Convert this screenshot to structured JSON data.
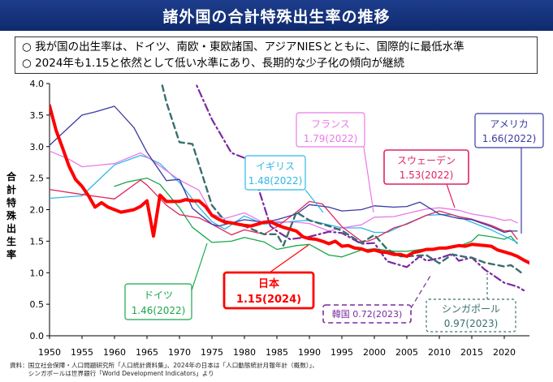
{
  "header": {
    "title": "諸外国の合計特殊出生率の推移"
  },
  "notes": [
    "○ 我が国の出生率は、ドイツ、南欧・東欧諸国、アジアNIESとともに、国際的に最低水準",
    "○ 2024年も1.15と依然として低い水準にあり、長期的な少子化の傾向が継続"
  ],
  "source": [
    "資料：国立社会保障・人口問題研究所「人口統計資料集」、2024年の日本は「人口動態統計月報年計（概数）」、",
    "　　　シンガポールは世界銀行「World Development Indicators」より"
  ],
  "colors": {
    "japan": "#ff0000",
    "germany": "#19a84a",
    "uk": "#2eb8e6",
    "france": "#e87ae8",
    "sweden": "#e0245e",
    "usa": "#3a3aa0",
    "korea": "#7a2aa0",
    "singapore": "#3a6e6e"
  },
  "chart_data": {
    "type": "line",
    "title": "",
    "xlabel": "",
    "ylabel": "合計特殊出生率",
    "xlim": [
      1950,
      2024
    ],
    "ylim": [
      0,
      4
    ],
    "x_ticks": [
      "1950",
      "1955",
      "1960",
      "1965",
      "1970",
      "1975",
      "1980",
      "1985",
      "1990",
      "1995",
      "2000",
      "2005",
      "2010",
      "2015",
      "2020"
    ],
    "y_ticks": [
      "0.0",
      "0.5",
      "1.0",
      "1.5",
      "2.0",
      "2.5",
      "3.0",
      "3.5",
      "4.0"
    ],
    "grid": false,
    "series": [
      {
        "name": "日本",
        "color_key": "japan",
        "style": "bold",
        "label": "日本",
        "value_label": "1.15(2024)",
        "points": [
          [
            1950,
            3.65
          ],
          [
            1951,
            3.26
          ],
          [
            1952,
            2.98
          ],
          [
            1953,
            2.69
          ],
          [
            1954,
            2.48
          ],
          [
            1955,
            2.37
          ],
          [
            1956,
            2.22
          ],
          [
            1957,
            2.04
          ],
          [
            1958,
            2.11
          ],
          [
            1959,
            2.04
          ],
          [
            1960,
            2.0
          ],
          [
            1961,
            1.96
          ],
          [
            1962,
            1.98
          ],
          [
            1963,
            2.0
          ],
          [
            1964,
            2.05
          ],
          [
            1965,
            2.14
          ],
          [
            1966,
            1.58
          ],
          [
            1967,
            2.23
          ],
          [
            1968,
            2.13
          ],
          [
            1969,
            2.13
          ],
          [
            1970,
            2.13
          ],
          [
            1971,
            2.16
          ],
          [
            1972,
            2.14
          ],
          [
            1973,
            2.14
          ],
          [
            1974,
            2.05
          ],
          [
            1975,
            1.91
          ],
          [
            1976,
            1.85
          ],
          [
            1977,
            1.8
          ],
          [
            1978,
            1.79
          ],
          [
            1979,
            1.77
          ],
          [
            1980,
            1.75
          ],
          [
            1981,
            1.74
          ],
          [
            1982,
            1.77
          ],
          [
            1983,
            1.8
          ],
          [
            1984,
            1.81
          ],
          [
            1985,
            1.76
          ],
          [
            1986,
            1.72
          ],
          [
            1987,
            1.69
          ],
          [
            1988,
            1.66
          ],
          [
            1989,
            1.57
          ],
          [
            1990,
            1.54
          ],
          [
            1991,
            1.53
          ],
          [
            1992,
            1.5
          ],
          [
            1993,
            1.46
          ],
          [
            1994,
            1.5
          ],
          [
            1995,
            1.42
          ],
          [
            1996,
            1.43
          ],
          [
            1997,
            1.39
          ],
          [
            1998,
            1.38
          ],
          [
            1999,
            1.34
          ],
          [
            2000,
            1.36
          ],
          [
            2001,
            1.33
          ],
          [
            2002,
            1.32
          ],
          [
            2003,
            1.29
          ],
          [
            2004,
            1.29
          ],
          [
            2005,
            1.26
          ],
          [
            2006,
            1.32
          ],
          [
            2007,
            1.34
          ],
          [
            2008,
            1.37
          ],
          [
            2009,
            1.37
          ],
          [
            2010,
            1.39
          ],
          [
            2011,
            1.39
          ],
          [
            2012,
            1.41
          ],
          [
            2013,
            1.43
          ],
          [
            2014,
            1.42
          ],
          [
            2015,
            1.45
          ],
          [
            2016,
            1.44
          ],
          [
            2017,
            1.43
          ],
          [
            2018,
            1.42
          ],
          [
            2019,
            1.36
          ],
          [
            2020,
            1.33
          ],
          [
            2021,
            1.3
          ],
          [
            2022,
            1.26
          ],
          [
            2023,
            1.2
          ],
          [
            2024,
            1.15
          ]
        ]
      },
      {
        "name": "ドイツ",
        "color_key": "germany",
        "style": "solid",
        "label": "ドイツ",
        "value_label": "1.46(2022)",
        "points": [
          [
            1960,
            2.37
          ],
          [
            1962,
            2.44
          ],
          [
            1965,
            2.5
          ],
          [
            1967,
            2.4
          ],
          [
            1970,
            2.03
          ],
          [
            1972,
            1.72
          ],
          [
            1975,
            1.48
          ],
          [
            1978,
            1.5
          ],
          [
            1980,
            1.56
          ],
          [
            1983,
            1.49
          ],
          [
            1985,
            1.37
          ],
          [
            1988,
            1.43
          ],
          [
            1990,
            1.45
          ],
          [
            1993,
            1.28
          ],
          [
            1995,
            1.25
          ],
          [
            1998,
            1.36
          ],
          [
            2000,
            1.38
          ],
          [
            2003,
            1.34
          ],
          [
            2005,
            1.34
          ],
          [
            2008,
            1.38
          ],
          [
            2010,
            1.39
          ],
          [
            2013,
            1.42
          ],
          [
            2015,
            1.5
          ],
          [
            2016,
            1.6
          ],
          [
            2018,
            1.57
          ],
          [
            2020,
            1.53
          ],
          [
            2021,
            1.58
          ],
          [
            2022,
            1.46
          ]
        ]
      },
      {
        "name": "イギリス",
        "color_key": "uk",
        "style": "solid",
        "label": "イギリス",
        "value_label": "1.48(2022)",
        "points": [
          [
            1950,
            2.18
          ],
          [
            1955,
            2.22
          ],
          [
            1960,
            2.71
          ],
          [
            1964,
            2.86
          ],
          [
            1965,
            2.83
          ],
          [
            1967,
            2.73
          ],
          [
            1970,
            2.43
          ],
          [
            1973,
            2.04
          ],
          [
            1975,
            1.81
          ],
          [
            1977,
            1.69
          ],
          [
            1980,
            1.9
          ],
          [
            1983,
            1.77
          ],
          [
            1985,
            1.79
          ],
          [
            1988,
            1.82
          ],
          [
            1990,
            1.83
          ],
          [
            1993,
            1.76
          ],
          [
            1995,
            1.71
          ],
          [
            1998,
            1.71
          ],
          [
            2000,
            1.64
          ],
          [
            2002,
            1.64
          ],
          [
            2005,
            1.78
          ],
          [
            2008,
            1.91
          ],
          [
            2010,
            1.92
          ],
          [
            2012,
            1.92
          ],
          [
            2015,
            1.8
          ],
          [
            2018,
            1.68
          ],
          [
            2020,
            1.58
          ],
          [
            2021,
            1.53
          ],
          [
            2022,
            1.48
          ]
        ]
      },
      {
        "name": "フランス",
        "color_key": "france",
        "style": "solid",
        "label": "フランス",
        "value_label": "1.79(2022)",
        "points": [
          [
            1950,
            2.93
          ],
          [
            1953,
            2.8
          ],
          [
            1955,
            2.68
          ],
          [
            1960,
            2.73
          ],
          [
            1964,
            2.9
          ],
          [
            1965,
            2.84
          ],
          [
            1970,
            2.47
          ],
          [
            1973,
            2.31
          ],
          [
            1975,
            1.93
          ],
          [
            1977,
            1.86
          ],
          [
            1980,
            1.95
          ],
          [
            1983,
            1.79
          ],
          [
            1985,
            1.81
          ],
          [
            1988,
            1.8
          ],
          [
            1990,
            1.78
          ],
          [
            1993,
            1.66
          ],
          [
            1995,
            1.71
          ],
          [
            1998,
            1.76
          ],
          [
            2000,
            1.88
          ],
          [
            2003,
            1.89
          ],
          [
            2005,
            1.94
          ],
          [
            2008,
            2.01
          ],
          [
            2010,
            2.03
          ],
          [
            2013,
            1.99
          ],
          [
            2015,
            1.93
          ],
          [
            2018,
            1.88
          ],
          [
            2020,
            1.83
          ],
          [
            2021,
            1.84
          ],
          [
            2022,
            1.79
          ]
        ]
      },
      {
        "name": "スウェーデン",
        "color_key": "sweden",
        "style": "solid",
        "label": "スウェーデン",
        "value_label": "1.53(2022)",
        "points": [
          [
            1950,
            2.32
          ],
          [
            1955,
            2.24
          ],
          [
            1960,
            2.17
          ],
          [
            1964,
            2.47
          ],
          [
            1965,
            2.39
          ],
          [
            1968,
            2.07
          ],
          [
            1970,
            1.92
          ],
          [
            1973,
            1.87
          ],
          [
            1975,
            1.77
          ],
          [
            1978,
            1.6
          ],
          [
            1980,
            1.68
          ],
          [
            1983,
            1.61
          ],
          [
            1985,
            1.73
          ],
          [
            1988,
            1.96
          ],
          [
            1990,
            2.13
          ],
          [
            1992,
            2.09
          ],
          [
            1995,
            1.73
          ],
          [
            1998,
            1.5
          ],
          [
            1999,
            1.5
          ],
          [
            2000,
            1.54
          ],
          [
            2003,
            1.71
          ],
          [
            2005,
            1.77
          ],
          [
            2008,
            1.91
          ],
          [
            2010,
            1.98
          ],
          [
            2013,
            1.89
          ],
          [
            2015,
            1.85
          ],
          [
            2018,
            1.75
          ],
          [
            2020,
            1.66
          ],
          [
            2021,
            1.67
          ],
          [
            2022,
            1.53
          ]
        ]
      },
      {
        "name": "アメリカ",
        "color_key": "usa",
        "style": "solid",
        "label": "アメリカ",
        "value_label": "1.66(2022)",
        "points": [
          [
            1950,
            3.02
          ],
          [
            1955,
            3.5
          ],
          [
            1957,
            3.55
          ],
          [
            1960,
            3.64
          ],
          [
            1963,
            3.3
          ],
          [
            1965,
            2.91
          ],
          [
            1968,
            2.46
          ],
          [
            1970,
            2.48
          ],
          [
            1972,
            2.02
          ],
          [
            1975,
            1.77
          ],
          [
            1976,
            1.74
          ],
          [
            1980,
            1.84
          ],
          [
            1983,
            1.8
          ],
          [
            1985,
            1.84
          ],
          [
            1988,
            1.93
          ],
          [
            1990,
            2.08
          ],
          [
            1993,
            2.04
          ],
          [
            1995,
            1.98
          ],
          [
            1998,
            2.0
          ],
          [
            2000,
            2.06
          ],
          [
            2003,
            2.04
          ],
          [
            2005,
            2.05
          ],
          [
            2007,
            2.12
          ],
          [
            2010,
            1.93
          ],
          [
            2013,
            1.86
          ],
          [
            2015,
            1.84
          ],
          [
            2018,
            1.73
          ],
          [
            2020,
            1.64
          ],
          [
            2021,
            1.66
          ],
          [
            2022,
            1.66
          ]
        ]
      },
      {
        "name": "韓国",
        "color_key": "korea",
        "style": "dashdot",
        "label": "韓国",
        "value_label": "0.72(2023)",
        "points": [
          [
            1972,
            4.12
          ],
          [
            1975,
            3.43
          ],
          [
            1978,
            2.9
          ],
          [
            1980,
            2.82
          ],
          [
            1982,
            2.39
          ],
          [
            1984,
            1.74
          ],
          [
            1985,
            1.66
          ],
          [
            1987,
            1.53
          ],
          [
            1990,
            1.57
          ],
          [
            1993,
            1.65
          ],
          [
            1995,
            1.63
          ],
          [
            1998,
            1.46
          ],
          [
            2000,
            1.47
          ],
          [
            2002,
            1.18
          ],
          [
            2005,
            1.09
          ],
          [
            2007,
            1.26
          ],
          [
            2008,
            1.19
          ],
          [
            2010,
            1.23
          ],
          [
            2012,
            1.3
          ],
          [
            2013,
            1.19
          ],
          [
            2015,
            1.24
          ],
          [
            2017,
            1.05
          ],
          [
            2018,
            0.98
          ],
          [
            2020,
            0.84
          ],
          [
            2021,
            0.81
          ],
          [
            2022,
            0.78
          ],
          [
            2023,
            0.72
          ]
        ]
      },
      {
        "name": "シンガポール",
        "color_key": "singapore",
        "style": "dashed",
        "label": "シンガポール",
        "value_label": "0.97(2023)",
        "points": [
          [
            1967,
            4.12
          ],
          [
            1968,
            3.7
          ],
          [
            1970,
            3.07
          ],
          [
            1972,
            3.04
          ],
          [
            1975,
            2.07
          ],
          [
            1977,
            1.82
          ],
          [
            1980,
            1.74
          ],
          [
            1983,
            1.61
          ],
          [
            1985,
            1.61
          ],
          [
            1986,
            1.43
          ],
          [
            1988,
            1.96
          ],
          [
            1990,
            1.83
          ],
          [
            1993,
            1.74
          ],
          [
            1995,
            1.67
          ],
          [
            1998,
            1.47
          ],
          [
            2000,
            1.6
          ],
          [
            2002,
            1.37
          ],
          [
            2004,
            1.26
          ],
          [
            2005,
            1.26
          ],
          [
            2008,
            1.28
          ],
          [
            2010,
            1.15
          ],
          [
            2012,
            1.29
          ],
          [
            2014,
            1.25
          ],
          [
            2015,
            1.24
          ],
          [
            2017,
            1.16
          ],
          [
            2018,
            1.14
          ],
          [
            2020,
            1.1
          ],
          [
            2021,
            1.12
          ],
          [
            2022,
            1.05
          ],
          [
            2023,
            0.97
          ]
        ]
      }
    ]
  }
}
